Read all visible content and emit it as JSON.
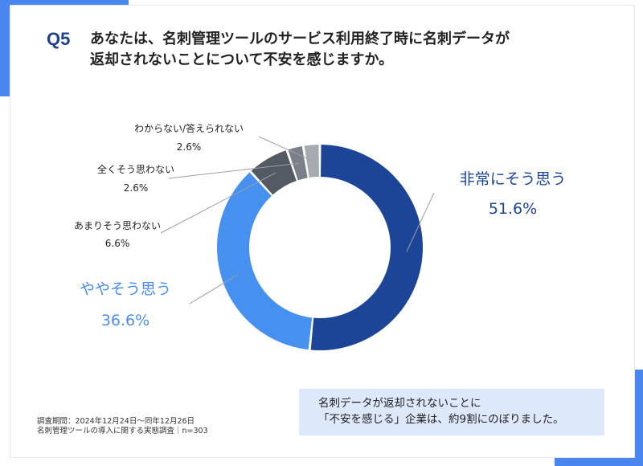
{
  "question_number": "Q5",
  "question_lines": [
    "あなたは、名刺管理ツールのサービス利用終了時に名刺データが",
    "返却されないことについて不安を感じますか。"
  ],
  "footer_lines": [
    "調査期間：2024年12月24日〜同年12月26日",
    "名刺管理ツールの導入に関する実態調査｜n=303"
  ],
  "callout_lines": [
    "名刺データが返却されないことに",
    "「不安を感じる」企業は、約9割にのぼりました。"
  ],
  "colors": {
    "accent": "#4a86f0",
    "title_blue": "#1f3f8f"
  },
  "chart_data": {
    "type": "pie",
    "donut": true,
    "slices": [
      {
        "label": "非常にそう思う",
        "value": 51.6,
        "value_text": "51.6%",
        "color": "#1c4597",
        "text_color": "#1c4597"
      },
      {
        "label": "ややそう思う",
        "value": 36.6,
        "value_text": "36.6%",
        "color": "#4690f0",
        "text_color": "#4a8ef0"
      },
      {
        "label": "あまりそう思わない",
        "value": 6.6,
        "value_text": "6.6%",
        "color": "#545a63",
        "text_color": "#222222"
      },
      {
        "label": "全くそう思わない",
        "value": 2.6,
        "value_text": "2.6%",
        "color": "#7b8088",
        "text_color": "#222222"
      },
      {
        "label": "わからない/答えられない",
        "value": 2.6,
        "value_text": "2.6%",
        "color": "#a6abb2",
        "text_color": "#222222"
      }
    ]
  }
}
